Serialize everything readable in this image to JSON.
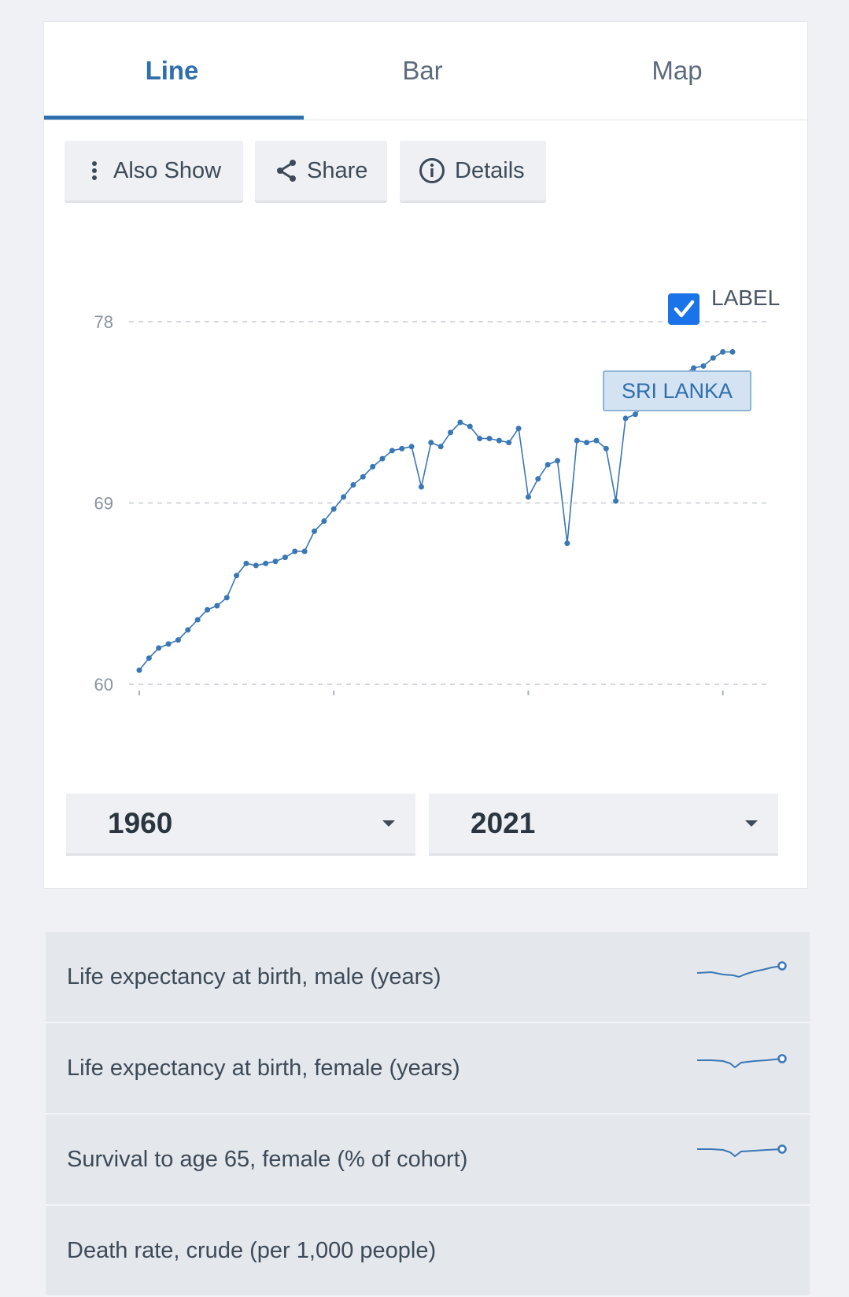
{
  "tabs": [
    {
      "label": "Line",
      "active": true
    },
    {
      "label": "Bar",
      "active": false
    },
    {
      "label": "Map",
      "active": false
    }
  ],
  "toolbar": {
    "also_show": "Also Show",
    "share": "Share",
    "details": "Details"
  },
  "label_toggle": {
    "label": "LABEL",
    "checked": true
  },
  "year_range": {
    "from": "1960",
    "to": "2021"
  },
  "chart_data": {
    "type": "line",
    "series": [
      {
        "name": "SRI LANKA",
        "x": [
          1960,
          1961,
          1962,
          1963,
          1964,
          1965,
          1966,
          1967,
          1968,
          1969,
          1970,
          1971,
          1972,
          1973,
          1974,
          1975,
          1976,
          1977,
          1978,
          1979,
          1980,
          1981,
          1982,
          1983,
          1984,
          1985,
          1986,
          1987,
          1988,
          1989,
          1990,
          1991,
          1992,
          1993,
          1994,
          1995,
          1996,
          1997,
          1998,
          1999,
          2000,
          2001,
          2002,
          2003,
          2004,
          2005,
          2006,
          2007,
          2008,
          2009,
          2010,
          2011,
          2012,
          2013,
          2014,
          2015,
          2016,
          2017,
          2018,
          2019,
          2020,
          2021
        ],
        "values": [
          60.7,
          61.3,
          61.8,
          62.0,
          62.2,
          62.7,
          63.2,
          63.7,
          63.9,
          64.3,
          65.4,
          66.0,
          65.9,
          66.0,
          66.1,
          66.3,
          66.6,
          66.6,
          67.6,
          68.1,
          68.7,
          69.3,
          69.9,
          70.3,
          70.8,
          71.2,
          71.6,
          71.7,
          71.8,
          69.8,
          72.0,
          71.8,
          72.5,
          73.0,
          72.8,
          72.2,
          72.2,
          72.1,
          72.0,
          72.7,
          69.3,
          70.2,
          70.9,
          71.1,
          67.0,
          72.1,
          72.0,
          72.1,
          71.7,
          69.1,
          73.2,
          73.4,
          73.9,
          74.5,
          74.8,
          75.4,
          75.4,
          75.7,
          75.8,
          76.2,
          76.5,
          76.5
        ]
      }
    ],
    "ylim": [
      60,
      78
    ],
    "yticks": [
      60,
      69,
      78
    ],
    "grid": true,
    "series_label": "SRI LANKA"
  },
  "related": [
    {
      "label": "Life expectancy at birth, male (years)"
    },
    {
      "label": "Life expectancy at birth, female (years)"
    },
    {
      "label": "Survival to age 65, female (% of cohort)"
    },
    {
      "label": "Death rate, crude (per 1,000 people)"
    }
  ],
  "colors": {
    "accent": "#2f6fad",
    "line": "#3a77b5",
    "checkbox": "#1a73e8"
  }
}
